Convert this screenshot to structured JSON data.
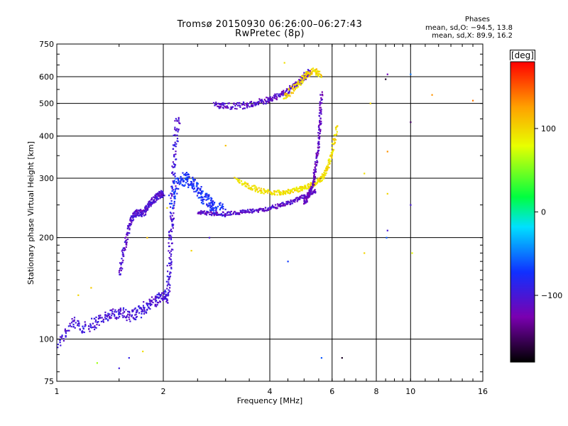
{
  "header": {
    "title_line1": "Tromsø 20150930 06:26:00–06:27:43",
    "title_line2": "RwPretec (8p)",
    "phases_label": "Phases",
    "phase_o_line": "mean, sd,O: −94.5, 13.8",
    "phase_x_line": "mean, sd,X: 89.9, 16.2"
  },
  "colorbar": {
    "unit": "[deg]",
    "ticks": [
      {
        "value": 100,
        "label": "100"
      },
      {
        "value": 0,
        "label": "0"
      },
      {
        "value": -100,
        "label": "−100"
      }
    ],
    "range": [
      -180,
      180
    ]
  },
  "chart_data": {
    "type": "scatter",
    "xlabel": "Frequency [MHz]",
    "ylabel": "Stationary phase Virtual Height [km]",
    "x_scale": "log",
    "y_scale": "log",
    "xlim": [
      1,
      16
    ],
    "ylim": [
      75,
      750
    ],
    "x_ticks": [
      {
        "value": 1,
        "label": "1"
      },
      {
        "value": 2,
        "label": "2"
      },
      {
        "value": 4,
        "label": "4"
      },
      {
        "value": 6,
        "label": "6"
      },
      {
        "value": 8,
        "label": "8"
      },
      {
        "value": 10,
        "label": "10"
      },
      {
        "value": 16,
        "label": "16"
      }
    ],
    "y_ticks": [
      {
        "value": 75,
        "label": "75"
      },
      {
        "value": 100,
        "label": "100"
      },
      {
        "value": 200,
        "label": "200"
      },
      {
        "value": 300,
        "label": "300"
      },
      {
        "value": 400,
        "label": "400"
      },
      {
        "value": 500,
        "label": "500"
      },
      {
        "value": 600,
        "label": "600"
      },
      {
        "value": 750,
        "label": "750"
      }
    ],
    "grid": true,
    "color_variable": "phase [deg]",
    "traces": [
      {
        "x": [
          1.0,
          1.1,
          1.2,
          1.3,
          1.4,
          1.5,
          1.6,
          1.7,
          1.8,
          1.9,
          2.0,
          2.05
        ],
        "y": [
          96,
          112,
          108,
          113,
          118,
          120,
          117,
          120,
          126,
          130,
          135,
          132
        ],
        "phase": -100,
        "spread": 0.035
      },
      {
        "x": [
          1.5,
          1.55,
          1.6,
          1.65,
          1.7,
          1.75,
          1.8,
          1.85,
          1.9,
          1.95,
          2.0
        ],
        "y": [
          155,
          185,
          215,
          235,
          238,
          235,
          245,
          255,
          262,
          268,
          270
        ],
        "phase": -105,
        "spread": 0.02
      },
      {
        "x": [
          2.05,
          2.08,
          2.1,
          2.12,
          2.14,
          2.16,
          2.2
        ],
        "y": [
          130,
          160,
          200,
          240,
          300,
          380,
          460
        ],
        "phase": -100,
        "spread": 0.03
      },
      {
        "x": [
          2.1,
          2.2,
          2.3,
          2.4,
          2.5,
          2.6,
          2.7,
          2.8,
          3.0
        ],
        "y": [
          255,
          290,
          300,
          290,
          275,
          262,
          252,
          245,
          240
        ],
        "phase": -75,
        "spread": 0.04
      },
      {
        "x": [
          2.5,
          2.7,
          3.0,
          3.3,
          3.6,
          3.9,
          4.2,
          4.5,
          4.8,
          5.1,
          5.4
        ],
        "y": [
          238,
          236,
          235,
          238,
          240,
          243,
          248,
          253,
          260,
          268,
          275
        ],
        "phase": -110,
        "spread": 0.012
      },
      {
        "x": [
          3.2,
          3.5,
          3.8,
          4.1,
          4.4,
          4.7,
          5.0,
          5.3,
          5.6,
          5.8,
          6.0,
          6.2
        ],
        "y": [
          298,
          284,
          275,
          272,
          273,
          276,
          281,
          288,
          298,
          320,
          360,
          430
        ],
        "phase": 95,
        "spread": 0.015
      },
      {
        "x": [
          2.8,
          3.0,
          3.3,
          3.6,
          3.9,
          4.2,
          4.5,
          4.8,
          5.0,
          5.2
        ],
        "y": [
          495,
          490,
          492,
          500,
          510,
          525,
          545,
          575,
          600,
          620
        ],
        "phase": -110,
        "spread": 0.02
      },
      {
        "x": [
          5.0,
          5.15,
          5.3,
          5.4,
          5.5,
          5.55,
          5.6
        ],
        "y": [
          255,
          265,
          290,
          330,
          380,
          450,
          540
        ],
        "phase": -115,
        "spread": 0.015
      },
      {
        "x": [
          4.4,
          4.7,
          5.0,
          5.3,
          5.6
        ],
        "y": [
          520,
          560,
          600,
          625,
          610
        ],
        "phase": 100,
        "spread": 0.02
      }
    ],
    "isolated_points": [
      {
        "x": 1.15,
        "y": 135,
        "phase": 100
      },
      {
        "x": 1.25,
        "y": 142,
        "phase": 105
      },
      {
        "x": 1.3,
        "y": 85,
        "phase": 60
      },
      {
        "x": 1.5,
        "y": 82,
        "phase": -95
      },
      {
        "x": 1.6,
        "y": 88,
        "phase": -90
      },
      {
        "x": 1.75,
        "y": 92,
        "phase": 95
      },
      {
        "x": 1.8,
        "y": 200,
        "phase": 110
      },
      {
        "x": 2.05,
        "y": 245,
        "phase": 100
      },
      {
        "x": 2.4,
        "y": 183,
        "phase": 100
      },
      {
        "x": 2.7,
        "y": 200,
        "phase": -100
      },
      {
        "x": 3.0,
        "y": 375,
        "phase": 110
      },
      {
        "x": 4.5,
        "y": 170,
        "phase": -70
      },
      {
        "x": 4.4,
        "y": 660,
        "phase": 95
      },
      {
        "x": 5.6,
        "y": 88,
        "phase": -60
      },
      {
        "x": 6.4,
        "y": 88,
        "phase": -170
      },
      {
        "x": 7.4,
        "y": 310,
        "phase": 95
      },
      {
        "x": 7.4,
        "y": 180,
        "phase": 100
      },
      {
        "x": 7.7,
        "y": 500,
        "phase": 100
      },
      {
        "x": 8.5,
        "y": 590,
        "phase": -170
      },
      {
        "x": 8.6,
        "y": 610,
        "phase": -120
      },
      {
        "x": 8.6,
        "y": 270,
        "phase": 100
      },
      {
        "x": 8.6,
        "y": 210,
        "phase": -100
      },
      {
        "x": 8.55,
        "y": 200,
        "phase": -60
      },
      {
        "x": 8.6,
        "y": 360,
        "phase": 130
      },
      {
        "x": 10.0,
        "y": 440,
        "phase": -150
      },
      {
        "x": 10.0,
        "y": 610,
        "phase": -50
      },
      {
        "x": 10.0,
        "y": 250,
        "phase": -100
      },
      {
        "x": 10.1,
        "y": 180,
        "phase": 80
      },
      {
        "x": 11.5,
        "y": 530,
        "phase": 130
      },
      {
        "x": 15.0,
        "y": 510,
        "phase": 140
      }
    ]
  }
}
